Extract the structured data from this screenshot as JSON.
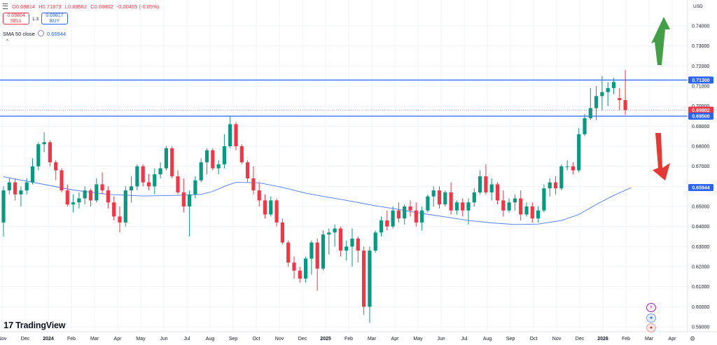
{
  "header": {
    "ohlc": [
      "O0.69814",
      "H0.71873",
      "L0.69562",
      "C0.69802",
      "-0.00455 (-0.65%)"
    ],
    "sell": {
      "price": "0.69804",
      "label": "SELL"
    },
    "buy": {
      "price": "0.69817",
      "label": "BUY"
    },
    "spread": "1.3",
    "sma_label": "SMA 50 close",
    "sma_value": "0.65944",
    "currency": "USD",
    "collapse_icon": "chevron-up-icon"
  },
  "logo": {
    "text": "TradingView"
  },
  "colors": {
    "up": "#089981",
    "down": "#f23645",
    "level": "#2962ff",
    "sma": "#2962ff",
    "arrow_up": "#43a047",
    "arrow_down": "#e53935"
  },
  "chart_data": {
    "type": "candlestick",
    "interval": "weekly",
    "y_ticks": [
      "0.74000",
      "0.73000",
      "0.72000",
      "0.71000",
      "0.70000",
      "0.69000",
      "0.68000",
      "0.67000",
      "0.66000",
      "0.65000",
      "0.64000",
      "0.63000",
      "0.62000",
      "0.61000",
      "0.60000",
      "0.59000"
    ],
    "x_ticks": [
      "Nov",
      "Dec",
      "2024",
      "Feb",
      "Mar",
      "Apr",
      "May",
      "Jun",
      "Jul",
      "Aug",
      "Sep",
      "Oct",
      "Nov",
      "Dec",
      "2025",
      "Feb",
      "Mar",
      "Apr",
      "May",
      "Jun",
      "Jul",
      "Aug",
      "Sep",
      "Oct",
      "Nov",
      "Dec",
      "2026",
      "Feb",
      "Mar",
      "Apr"
    ],
    "bold_x_ticks": [
      "2024",
      "2025",
      "2026"
    ],
    "ylim": [
      0.587,
      0.7475
    ],
    "price_labels": [
      {
        "value": 0.713,
        "text": "0.71300",
        "color": "#2962ff"
      },
      {
        "value": 0.69802,
        "text": "0.69802",
        "color": "#f23645"
      },
      {
        "value": 0.695,
        "text": "0.69500",
        "color": "#2962ff"
      },
      {
        "value": 0.65944,
        "text": "0.65944",
        "color": "#2962ff"
      }
    ],
    "levels": [
      0.713,
      0.695
    ],
    "current_price": 0.69802,
    "candles": [
      [
        0.642,
        0.66,
        0.635,
        0.658
      ],
      [
        0.658,
        0.664,
        0.656,
        0.662
      ],
      [
        0.662,
        0.664,
        0.653,
        0.656
      ],
      [
        0.656,
        0.66,
        0.65,
        0.658
      ],
      [
        0.658,
        0.664,
        0.656,
        0.662
      ],
      [
        0.662,
        0.674,
        0.661,
        0.67
      ],
      [
        0.67,
        0.682,
        0.668,
        0.681
      ],
      [
        0.681,
        0.687,
        0.677,
        0.682
      ],
      [
        0.682,
        0.683,
        0.67,
        0.672
      ],
      [
        0.672,
        0.673,
        0.663,
        0.668
      ],
      [
        0.668,
        0.669,
        0.657,
        0.658
      ],
      [
        0.658,
        0.661,
        0.65,
        0.651
      ],
      [
        0.651,
        0.656,
        0.647,
        0.652
      ],
      [
        0.652,
        0.657,
        0.649,
        0.654
      ],
      [
        0.654,
        0.66,
        0.651,
        0.658
      ],
      [
        0.658,
        0.659,
        0.65,
        0.653
      ],
      [
        0.653,
        0.664,
        0.652,
        0.661
      ],
      [
        0.661,
        0.667,
        0.656,
        0.658
      ],
      [
        0.658,
        0.66,
        0.649,
        0.652
      ],
      [
        0.652,
        0.655,
        0.643,
        0.645
      ],
      [
        0.645,
        0.65,
        0.637,
        0.642
      ],
      [
        0.642,
        0.66,
        0.64,
        0.658
      ],
      [
        0.658,
        0.665,
        0.652,
        0.66
      ],
      [
        0.66,
        0.671,
        0.658,
        0.67
      ],
      [
        0.67,
        0.671,
        0.66,
        0.662
      ],
      [
        0.662,
        0.666,
        0.658,
        0.66
      ],
      [
        0.66,
        0.669,
        0.656,
        0.666
      ],
      [
        0.666,
        0.672,
        0.664,
        0.669
      ],
      [
        0.669,
        0.68,
        0.668,
        0.679
      ],
      [
        0.679,
        0.68,
        0.664,
        0.665
      ],
      [
        0.665,
        0.668,
        0.656,
        0.657
      ],
      [
        0.657,
        0.664,
        0.647,
        0.65
      ],
      [
        0.65,
        0.658,
        0.635,
        0.656
      ],
      [
        0.656,
        0.665,
        0.654,
        0.663
      ],
      [
        0.663,
        0.674,
        0.662,
        0.672
      ],
      [
        0.672,
        0.679,
        0.666,
        0.678
      ],
      [
        0.678,
        0.679,
        0.668,
        0.669
      ],
      [
        0.669,
        0.673,
        0.666,
        0.671
      ],
      [
        0.671,
        0.686,
        0.669,
        0.68
      ],
      [
        0.68,
        0.695,
        0.679,
        0.691
      ],
      [
        0.691,
        0.692,
        0.678,
        0.68
      ],
      [
        0.68,
        0.681,
        0.671,
        0.672
      ],
      [
        0.672,
        0.673,
        0.662,
        0.664
      ],
      [
        0.664,
        0.67,
        0.656,
        0.658
      ],
      [
        0.658,
        0.662,
        0.65,
        0.653
      ],
      [
        0.653,
        0.656,
        0.644,
        0.646
      ],
      [
        0.646,
        0.655,
        0.645,
        0.653
      ],
      [
        0.653,
        0.654,
        0.64,
        0.642
      ],
      [
        0.642,
        0.644,
        0.631,
        0.632
      ],
      [
        0.632,
        0.633,
        0.62,
        0.622
      ],
      [
        0.622,
        0.625,
        0.614,
        0.618
      ],
      [
        0.618,
        0.62,
        0.612,
        0.614
      ],
      [
        0.614,
        0.625,
        0.612,
        0.624
      ],
      [
        0.624,
        0.633,
        0.616,
        0.632
      ],
      [
        0.632,
        0.634,
        0.608,
        0.619
      ],
      [
        0.619,
        0.638,
        0.618,
        0.636
      ],
      [
        0.636,
        0.639,
        0.626,
        0.637
      ],
      [
        0.637,
        0.641,
        0.63,
        0.639
      ],
      [
        0.639,
        0.64,
        0.625,
        0.628
      ],
      [
        0.628,
        0.633,
        0.623,
        0.63
      ],
      [
        0.63,
        0.639,
        0.62,
        0.634
      ],
      [
        0.634,
        0.635,
        0.622,
        0.628
      ],
      [
        0.628,
        0.63,
        0.596,
        0.6
      ],
      [
        0.6,
        0.63,
        0.592,
        0.628
      ],
      [
        0.628,
        0.638,
        0.627,
        0.637
      ],
      [
        0.637,
        0.645,
        0.635,
        0.643
      ],
      [
        0.643,
        0.648,
        0.638,
        0.64
      ],
      [
        0.64,
        0.65,
        0.639,
        0.648
      ],
      [
        0.648,
        0.652,
        0.642,
        0.644
      ],
      [
        0.644,
        0.651,
        0.641,
        0.65
      ],
      [
        0.65,
        0.653,
        0.645,
        0.648
      ],
      [
        0.648,
        0.652,
        0.64,
        0.642
      ],
      [
        0.642,
        0.65,
        0.638,
        0.648
      ],
      [
        0.648,
        0.656,
        0.647,
        0.655
      ],
      [
        0.655,
        0.66,
        0.65,
        0.658
      ],
      [
        0.658,
        0.66,
        0.649,
        0.651
      ],
      [
        0.651,
        0.658,
        0.65,
        0.657
      ],
      [
        0.657,
        0.662,
        0.646,
        0.648
      ],
      [
        0.648,
        0.653,
        0.646,
        0.652
      ],
      [
        0.652,
        0.654,
        0.645,
        0.648
      ],
      [
        0.648,
        0.654,
        0.641,
        0.652
      ],
      [
        0.652,
        0.659,
        0.65,
        0.657
      ],
      [
        0.657,
        0.668,
        0.656,
        0.665
      ],
      [
        0.665,
        0.671,
        0.656,
        0.657
      ],
      [
        0.657,
        0.664,
        0.653,
        0.661
      ],
      [
        0.661,
        0.662,
        0.651,
        0.653
      ],
      [
        0.653,
        0.658,
        0.645,
        0.648
      ],
      [
        0.648,
        0.654,
        0.647,
        0.652
      ],
      [
        0.652,
        0.656,
        0.648,
        0.654
      ],
      [
        0.654,
        0.658,
        0.643,
        0.646
      ],
      [
        0.646,
        0.652,
        0.645,
        0.65
      ],
      [
        0.65,
        0.652,
        0.642,
        0.644
      ],
      [
        0.644,
        0.65,
        0.642,
        0.648
      ],
      [
        0.648,
        0.661,
        0.647,
        0.659
      ],
      [
        0.659,
        0.664,
        0.655,
        0.662
      ],
      [
        0.662,
        0.665,
        0.656,
        0.659
      ],
      [
        0.659,
        0.671,
        0.658,
        0.67
      ],
      [
        0.67,
        0.673,
        0.668,
        0.67
      ],
      [
        0.67,
        0.672,
        0.666,
        0.668
      ],
      [
        0.668,
        0.689,
        0.667,
        0.686
      ],
      [
        0.686,
        0.696,
        0.685,
        0.694
      ],
      [
        0.694,
        0.709,
        0.693,
        0.699
      ],
      [
        0.699,
        0.71,
        0.693,
        0.705
      ],
      [
        0.705,
        0.715,
        0.698,
        0.707
      ],
      [
        0.707,
        0.712,
        0.7,
        0.709
      ],
      [
        0.709,
        0.714,
        0.706,
        0.712
      ],
      [
        0.704,
        0.709,
        0.698,
        0.703
      ],
      [
        0.703,
        0.718,
        0.6956,
        0.698
      ]
    ],
    "sma_50": [
      [
        0,
        0.6648
      ],
      [
        6,
        0.6615
      ],
      [
        12,
        0.6582
      ],
      [
        18,
        0.656
      ],
      [
        24,
        0.6552
      ],
      [
        30,
        0.6555
      ],
      [
        34,
        0.656
      ],
      [
        36,
        0.6575
      ],
      [
        38,
        0.66
      ],
      [
        40,
        0.662
      ],
      [
        44,
        0.6618
      ],
      [
        48,
        0.6595
      ],
      [
        52,
        0.6566
      ],
      [
        56,
        0.6545
      ],
      [
        60,
        0.6525
      ],
      [
        64,
        0.6503
      ],
      [
        68,
        0.6485
      ],
      [
        72,
        0.6465
      ],
      [
        76,
        0.6448
      ],
      [
        80,
        0.643
      ],
      [
        84,
        0.6418
      ],
      [
        88,
        0.641
      ],
      [
        92,
        0.6412
      ],
      [
        96,
        0.643
      ],
      [
        99,
        0.646
      ],
      [
        102,
        0.651
      ],
      [
        105,
        0.6555
      ],
      [
        108,
        0.6594
      ]
    ],
    "annotations": [
      {
        "type": "arrow",
        "direction": "up",
        "color": "#43a047"
      },
      {
        "type": "arrow",
        "direction": "down",
        "color": "#e53935"
      }
    ]
  }
}
